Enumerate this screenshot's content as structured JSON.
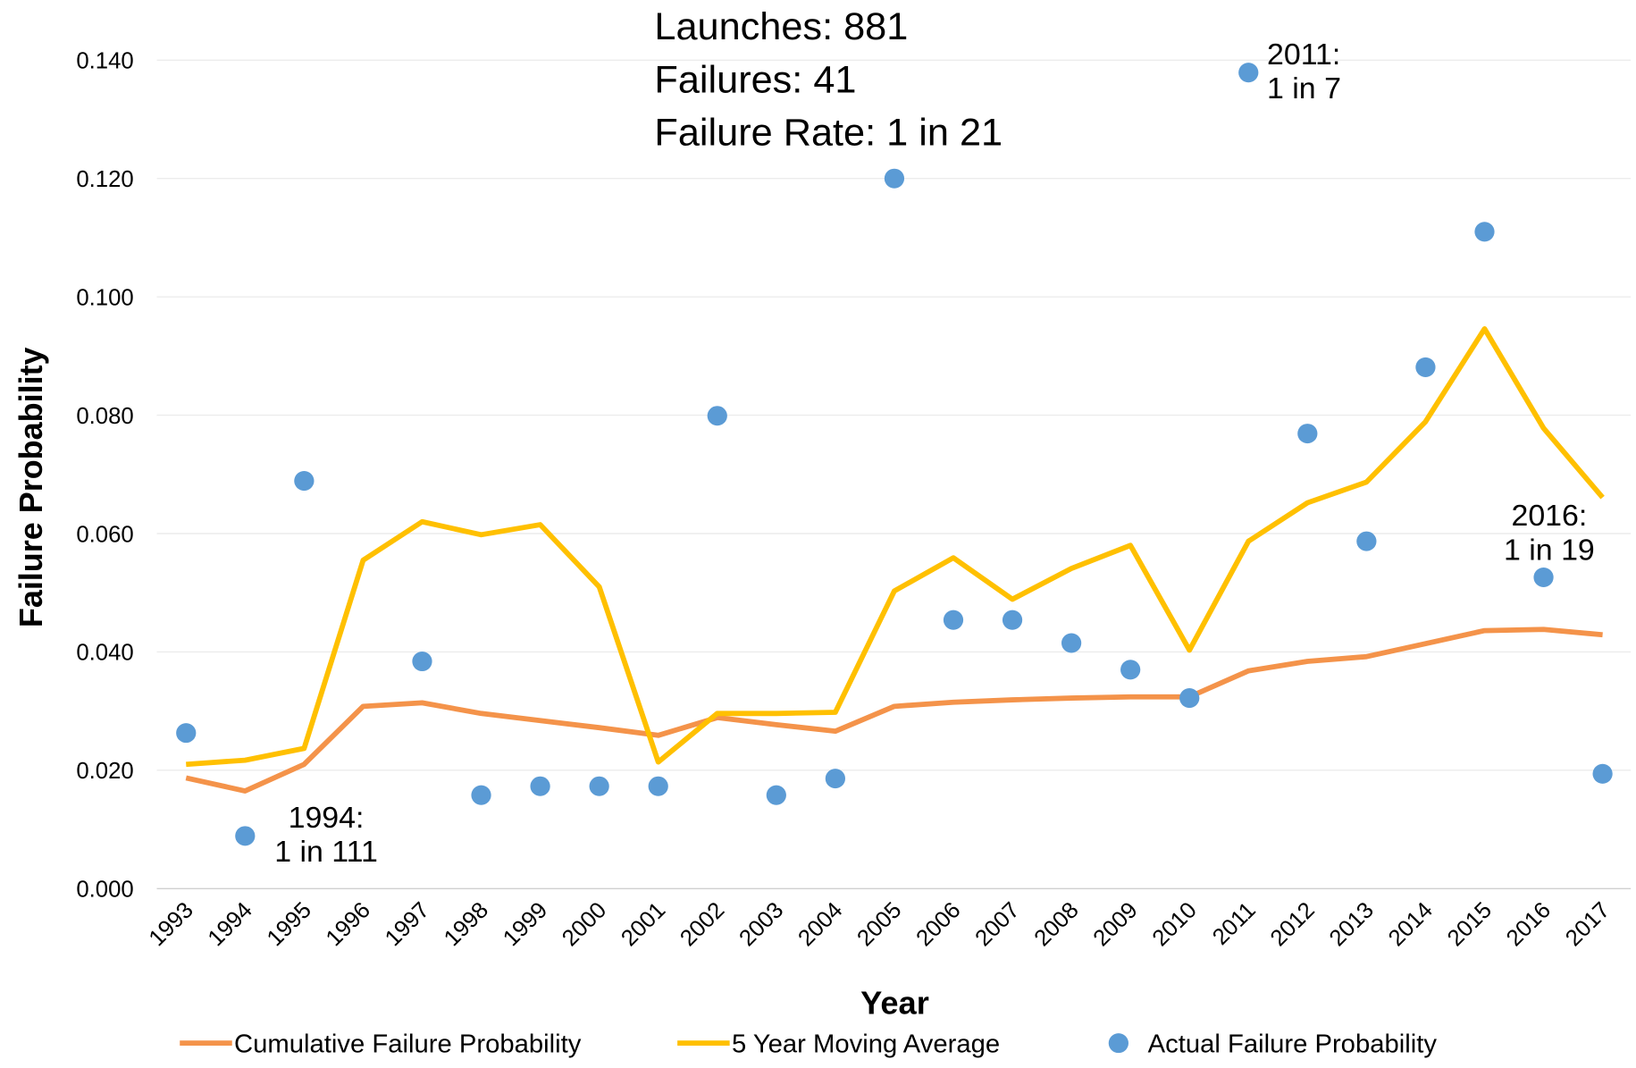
{
  "chart_data": {
    "type": "line",
    "x_label": "Year",
    "y_label": "Failure Probability",
    "summary": [
      "Launches: 881",
      "Failures: 41",
      "Failure Rate: 1 in 21"
    ],
    "annotations": [
      [
        "1994:",
        "1 in 111"
      ],
      [
        "2011:",
        "1 in 7"
      ],
      [
        "2016:",
        "1 in 19"
      ]
    ],
    "categories": [
      "1993",
      "1994",
      "1995",
      "1996",
      "1997",
      "1998",
      "1999",
      "2000",
      "2001",
      "2002",
      "2003",
      "2004",
      "2005",
      "2006",
      "2007",
      "2008",
      "2009",
      "2010",
      "2011",
      "2012",
      "2013",
      "2014",
      "2015",
      "2016",
      "2017"
    ],
    "series": [
      {
        "name": "Cumulative Failure Probability",
        "type": "line",
        "color": "#f4934a",
        "values": [
          0.0187,
          0.0165,
          0.021,
          0.0308,
          0.0314,
          0.0296,
          0.0284,
          0.0272,
          0.0259,
          0.0289,
          0.0277,
          0.0266,
          0.0308,
          0.0315,
          0.0319,
          0.0322,
          0.0324,
          0.0324,
          0.0368,
          0.0384,
          0.0392,
          0.0414,
          0.0436,
          0.0438,
          0.0429
        ]
      },
      {
        "name": "5 Year Moving Average",
        "type": "line",
        "color": "#ffc000",
        "values": [
          0.021,
          0.0217,
          0.0237,
          0.0555,
          0.062,
          0.0598,
          0.0615,
          0.051,
          0.0214,
          0.0296,
          0.0296,
          0.0298,
          0.0503,
          0.0559,
          0.0489,
          0.0541,
          0.058,
          0.0403,
          0.0587,
          0.0652,
          0.0687,
          0.0789,
          0.0946,
          0.0778,
          0.0661
        ]
      },
      {
        "name": "Actual Failure Probability",
        "type": "scatter",
        "color": "#5b9bd5",
        "values": [
          0.0263,
          0.0089,
          0.0689,
          null,
          0.0384,
          0.0158,
          0.0173,
          0.0173,
          0.0173,
          0.0799,
          0.0158,
          0.0186,
          0.12,
          0.0454,
          0.0454,
          0.0415,
          0.037,
          0.0322,
          0.1379,
          0.0769,
          0.0587,
          0.0881,
          0.111,
          0.0526,
          0.0194
        ]
      }
    ],
    "ylim": [
      0,
      0.14
    ],
    "yticks": [
      {
        "value": 0,
        "label": "0.000"
      },
      {
        "value": 0.02,
        "label": "0.020"
      },
      {
        "value": 0.04,
        "label": "0.040"
      },
      {
        "value": 0.06,
        "label": "0.060"
      },
      {
        "value": 0.08,
        "label": "0.080"
      },
      {
        "value": 0.1,
        "label": "0.100"
      },
      {
        "value": 0.12,
        "label": "0.120"
      },
      {
        "value": 0.14,
        "label": "0.140"
      }
    ],
    "grid": true
  }
}
